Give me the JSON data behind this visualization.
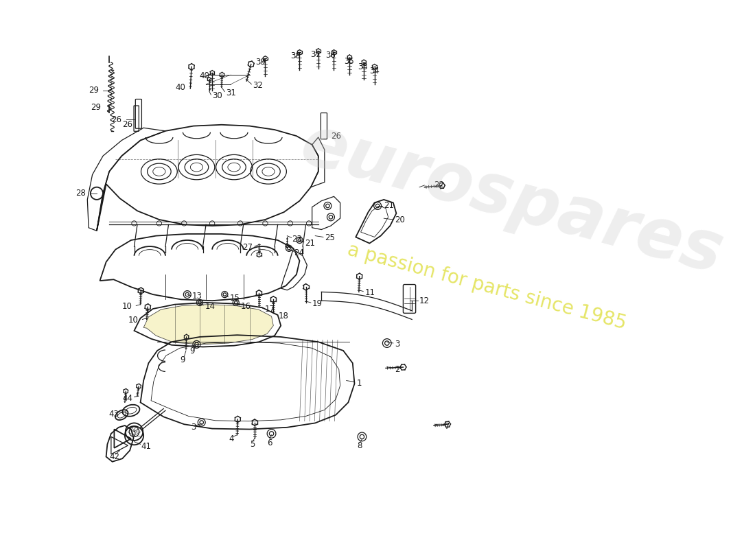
{
  "bg_color": "#ffffff",
  "line_color": "#1a1a1a",
  "watermark_color": "#cccccc",
  "watermark_text": "eurospares",
  "tagline_text": "a passion for parts since 1985",
  "tagline_color": "#d4d400",
  "lw_main": 1.3,
  "lw_med": 0.9,
  "lw_thin": 0.6,
  "label_fontsize": 8.5
}
